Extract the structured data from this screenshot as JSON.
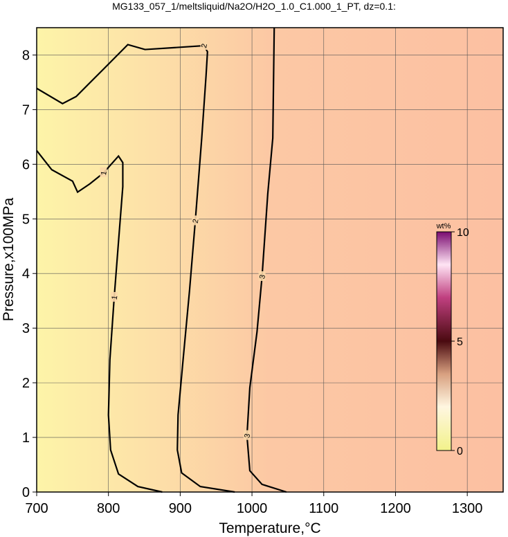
{
  "chart_data": {
    "type": "contour",
    "title": "MG133_057_1/meltsliquid/Na2O/H2O_1.0_C1.000_1_PT, dz=0.1:",
    "x_label": "Temperature,°C",
    "y_label": "Pressure,x100MPa",
    "xlim": [
      700,
      1350
    ],
    "ylim": [
      0,
      8.5
    ],
    "xticks": [
      700,
      800,
      900,
      1000,
      1100,
      1200,
      1300
    ],
    "yticks": [
      0,
      1,
      2,
      3,
      4,
      5,
      6,
      7,
      8
    ],
    "grid": true,
    "contours": [
      {
        "level": 1,
        "color": "#000000",
        "x": [
          700,
          721,
          750,
          757,
          774,
          793,
          814,
          820,
          820,
          814,
          808,
          802,
          800,
          803,
          814,
          841,
          875
        ],
        "y": [
          6.25,
          5.9,
          5.69,
          5.49,
          5.64,
          5.84,
          6.15,
          6.03,
          5.59,
          4.58,
          3.56,
          2.42,
          1.41,
          0.77,
          0.33,
          0.1,
          0
        ]
      },
      {
        "level": 2,
        "color": "#000000",
        "x": [
          700,
          736,
          755,
          793,
          827,
          851,
          933,
          938,
          936,
          930,
          921,
          913,
          904,
          897,
          896,
          902,
          928,
          976
        ],
        "y": [
          7.39,
          7.11,
          7.24,
          7.74,
          8.19,
          8.1,
          8.17,
          8.06,
          7.62,
          6.48,
          4.96,
          3.69,
          2.42,
          1.41,
          0.77,
          0.35,
          0.1,
          0
        ]
      },
      {
        "level": 3,
        "color": "#000000",
        "x": [
          1031,
          1029,
          1022,
          1014,
          1007,
          997,
          993,
          997,
          1014,
          1048
        ],
        "y": [
          8.5,
          6.48,
          5.46,
          3.94,
          2.93,
          1.91,
          1.03,
          0.39,
          0.14,
          0
        ]
      }
    ],
    "colorbar": {
      "label": "wt%",
      "clim": [
        0,
        10
      ],
      "ticks": [
        0,
        5,
        10
      ]
    }
  }
}
